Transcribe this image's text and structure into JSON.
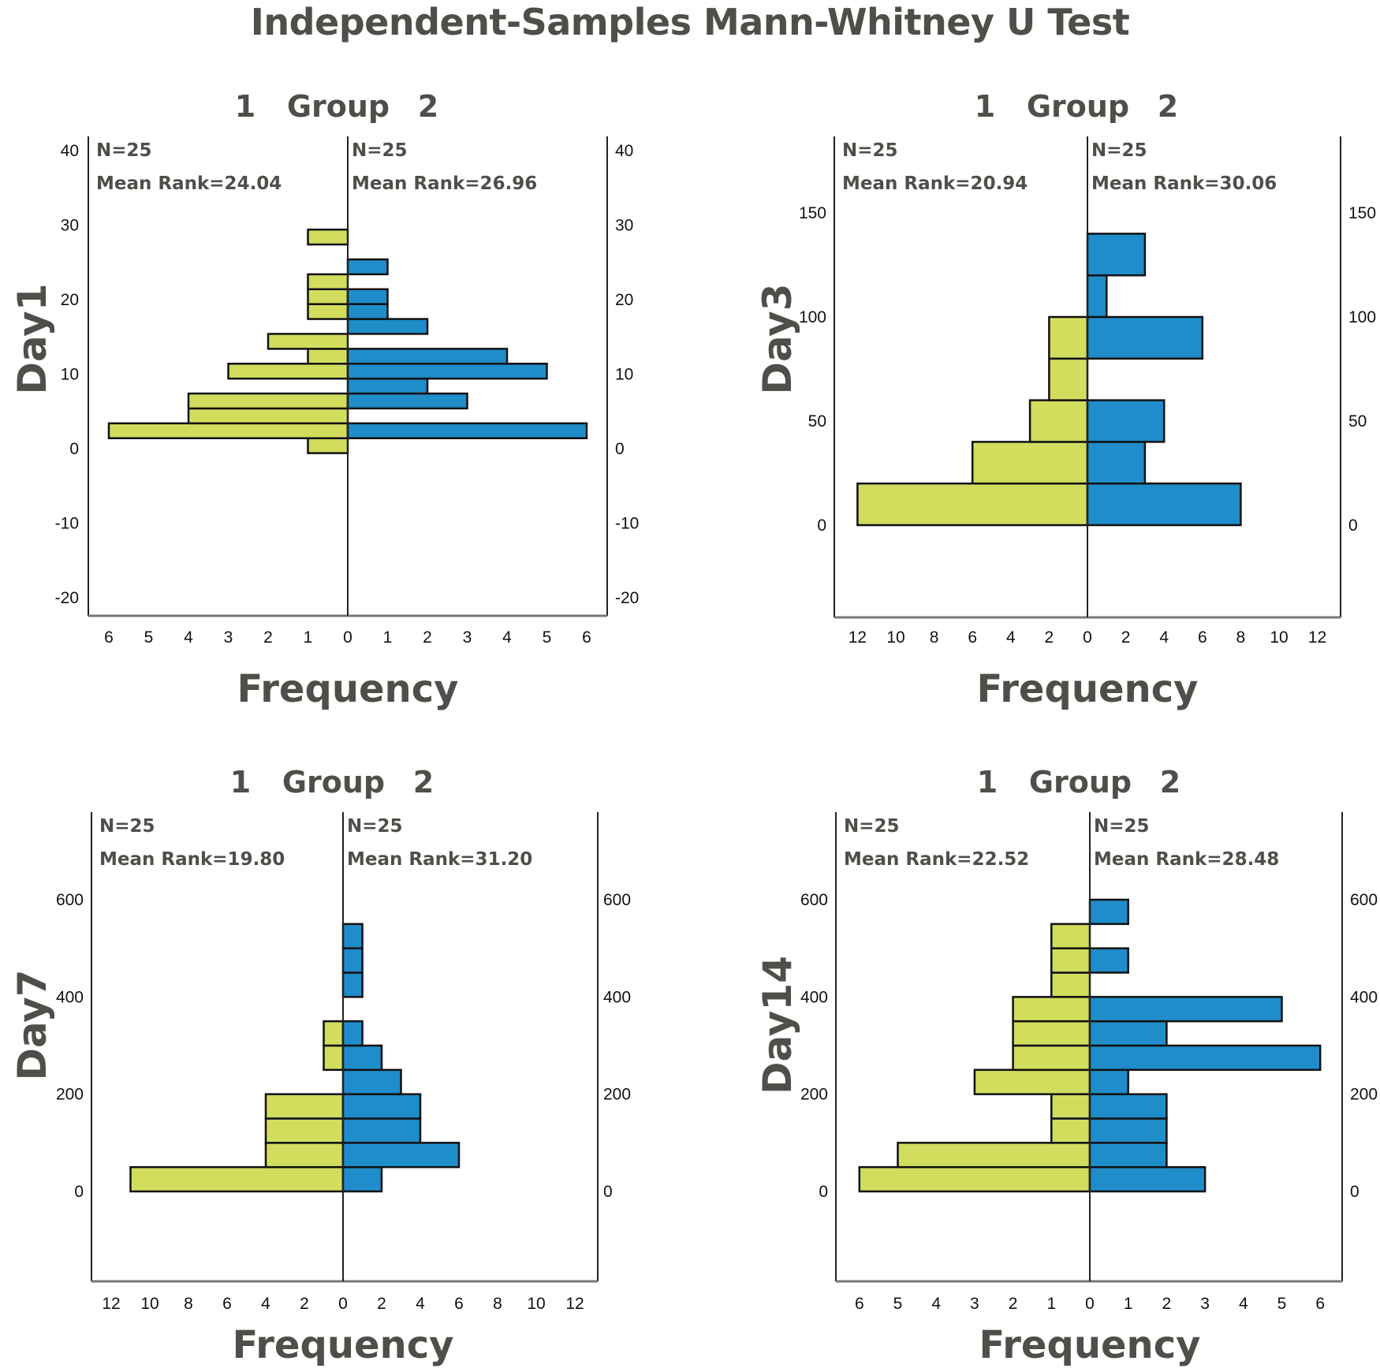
{
  "title": "Independent-Samples Mann-Whitney U Test",
  "colors": {
    "group1": "#d2dd5e",
    "group2": "#1f8dc9"
  },
  "chart_data": [
    {
      "type": "bar",
      "orientation": "horizontal-population-pyramid",
      "variable": "Day1",
      "group_header": {
        "left": "1",
        "center": "Group",
        "right": "2"
      },
      "xlabel": "Frequency",
      "ylabel": "Day1",
      "x_ticks": [
        6,
        5,
        4,
        3,
        2,
        1,
        0,
        1,
        2,
        3,
        4,
        5,
        6
      ],
      "x_max": 6,
      "y_ticks": [
        40,
        30,
        20,
        10,
        0,
        -10,
        -20
      ],
      "ylim": [
        -20,
        40
      ],
      "bin_edges": [
        -0.6,
        1.4,
        3.4,
        5.4,
        7.4,
        9.4,
        11.4,
        13.4,
        15.4,
        17.4,
        19.4,
        21.4,
        23.4,
        25.4,
        27.4,
        29.4
      ],
      "series": [
        {
          "name": "1",
          "N": "N=25",
          "mean_rank": "Mean Rank=24.04",
          "values": [
            1,
            6,
            4,
            4,
            0,
            3,
            1,
            2,
            0,
            1,
            1,
            1,
            0,
            0,
            1
          ]
        },
        {
          "name": "2",
          "N": "N=25",
          "mean_rank": "Mean Rank=26.96",
          "values": [
            0,
            6,
            0,
            3,
            2,
            5,
            4,
            0,
            2,
            1,
            1,
            0,
            1,
            0,
            0
          ]
        }
      ]
    },
    {
      "type": "bar",
      "orientation": "horizontal-population-pyramid",
      "variable": "Day3",
      "group_header": {
        "left": "1",
        "center": "Group",
        "right": "2"
      },
      "xlabel": "Frequency",
      "ylabel": "Day3",
      "x_ticks": [
        12,
        10,
        8,
        6,
        4,
        2,
        0,
        2,
        4,
        6,
        8,
        10,
        12
      ],
      "x_max": 12,
      "y_ticks": [
        150,
        100,
        50,
        0
      ],
      "ylim": [
        0,
        150
      ],
      "bin_edges": [
        0,
        20,
        40,
        60,
        80,
        100,
        120,
        140
      ],
      "series": [
        {
          "name": "1",
          "N": "N=25",
          "mean_rank": "Mean Rank=20.94",
          "values": [
            12,
            6,
            3,
            2,
            2,
            0,
            0
          ]
        },
        {
          "name": "2",
          "N": "N=25",
          "mean_rank": "Mean Rank=30.06",
          "values": [
            8,
            3,
            4,
            0,
            6,
            1,
            3
          ]
        }
      ]
    },
    {
      "type": "bar",
      "orientation": "horizontal-population-pyramid",
      "variable": "Day7",
      "group_header": {
        "left": "1",
        "center": "Group",
        "right": "2"
      },
      "xlabel": "Frequency",
      "ylabel": "Day7",
      "x_ticks": [
        12,
        10,
        8,
        6,
        4,
        2,
        0,
        2,
        4,
        6,
        8,
        10,
        12
      ],
      "x_max": 12,
      "y_ticks": [
        600,
        400,
        200,
        0
      ],
      "ylim": [
        0,
        600
      ],
      "bin_edges": [
        0,
        50,
        100,
        150,
        200,
        250,
        300,
        350,
        400,
        450,
        500,
        550
      ],
      "series": [
        {
          "name": "1",
          "N": "N=25",
          "mean_rank": "Mean Rank=19.80",
          "values": [
            11,
            4,
            4,
            4,
            0,
            1,
            1,
            0,
            0,
            0,
            0
          ]
        },
        {
          "name": "2",
          "N": "N=25",
          "mean_rank": "Mean Rank=31.20",
          "values": [
            2,
            6,
            4,
            4,
            3,
            2,
            1,
            0,
            1,
            1,
            1
          ]
        }
      ]
    },
    {
      "type": "bar",
      "orientation": "horizontal-population-pyramid",
      "variable": "Day14",
      "group_header": {
        "left": "1",
        "center": "Group",
        "right": "2"
      },
      "xlabel": "Frequency",
      "ylabel": "Day14",
      "x_ticks": [
        6,
        5,
        4,
        3,
        2,
        1,
        0,
        1,
        2,
        3,
        4,
        5,
        6
      ],
      "x_max": 6,
      "y_ticks": [
        600,
        400,
        200,
        0
      ],
      "ylim": [
        0,
        600
      ],
      "bin_edges": [
        0,
        50,
        100,
        150,
        200,
        250,
        300,
        350,
        400,
        450,
        500,
        550,
        600
      ],
      "series": [
        {
          "name": "1",
          "N": "N=25",
          "mean_rank": "Mean Rank=22.52",
          "values": [
            6,
            5,
            1,
            1,
            3,
            2,
            2,
            2,
            1,
            1,
            1,
            0
          ]
        },
        {
          "name": "2",
          "N": "N=25",
          "mean_rank": "Mean Rank=28.48",
          "values": [
            3,
            2,
            2,
            2,
            1,
            6,
            2,
            5,
            0,
            1,
            0,
            1
          ]
        }
      ]
    }
  ]
}
